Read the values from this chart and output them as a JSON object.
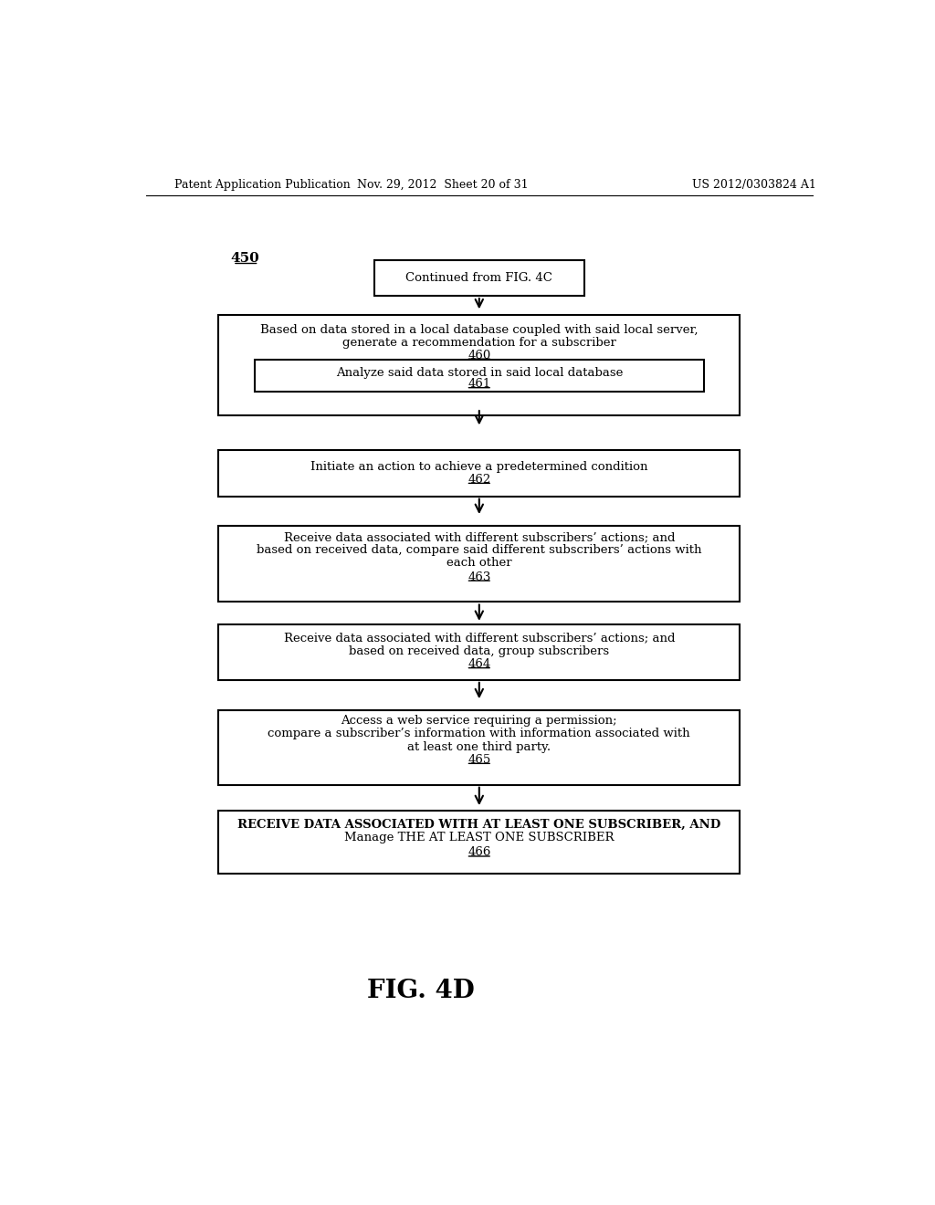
{
  "header_left": "Patent Application Publication",
  "header_mid": "Nov. 29, 2012  Sheet 20 of 31",
  "header_right": "US 2012/0303824 A1",
  "fig_label": "FIG. 4D",
  "diagram_label": "450",
  "bg_color": "#ffffff"
}
